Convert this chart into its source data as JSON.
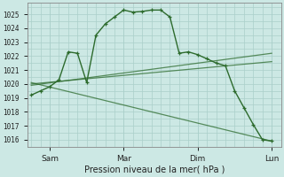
{
  "xlabel": "Pression niveau de la mer( hPa )",
  "bg_color": "#cce8e4",
  "grid_color": "#aacfca",
  "line_color": "#2d6b2d",
  "ylim_min": 1015.5,
  "ylim_max": 1025.8,
  "xlim_min": -0.2,
  "xlim_max": 13.5,
  "yticks": [
    1016,
    1017,
    1018,
    1019,
    1020,
    1021,
    1022,
    1023,
    1024,
    1025
  ],
  "xtick_positions": [
    1,
    5,
    9,
    13
  ],
  "xtick_labels": [
    "Sam",
    "Mar",
    "Dim",
    "Lun"
  ],
  "vline_positions": [
    1,
    5,
    9,
    13
  ],
  "lines": [
    {
      "x": [
        0,
        0.5,
        1,
        1.5,
        2,
        2.5,
        3,
        3.5,
        4,
        4.5,
        5,
        5.5,
        6,
        6.5,
        7,
        7.5,
        8,
        8.5,
        9,
        9.5,
        10,
        10.5,
        11,
        11.5,
        12,
        12.5,
        13
      ],
      "y": [
        1019.2,
        1019.5,
        1019.8,
        1020.3,
        1022.3,
        1022.2,
        1020.1,
        1023.5,
        1024.3,
        1024.8,
        1025.3,
        1025.15,
        1025.2,
        1025.3,
        1025.3,
        1024.8,
        1022.2,
        1022.3,
        1022.1,
        1021.8,
        1021.5,
        1021.3,
        1019.5,
        1018.3,
        1017.1,
        1016.0,
        1015.9
      ],
      "marker": "+"
    },
    {
      "x": [
        0,
        13
      ],
      "y": [
        1019.9,
        1022.2
      ],
      "marker": null
    },
    {
      "x": [
        0,
        13
      ],
      "y": [
        1020.0,
        1021.6
      ],
      "marker": null
    },
    {
      "x": [
        0,
        13
      ],
      "y": [
        1020.1,
        1015.9
      ],
      "marker": null
    }
  ]
}
